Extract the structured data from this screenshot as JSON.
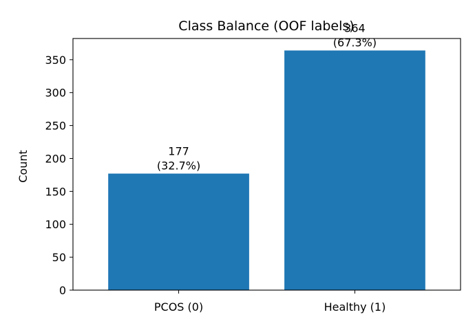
{
  "chart_data": {
    "type": "bar",
    "title": "Class Balance (OOF labels)",
    "xlabel": "",
    "ylabel": "Count",
    "categories": [
      "PCOS (0)",
      "Healthy (1)"
    ],
    "values": [
      177,
      364
    ],
    "data_labels": [
      {
        "count": "177",
        "percent": "(32.7%)"
      },
      {
        "count": "364",
        "percent": "(67.3%)"
      }
    ],
    "ylim": [
      0,
      382.2
    ],
    "yticks": [
      0,
      50,
      100,
      150,
      200,
      250,
      300,
      350
    ],
    "grid": false,
    "legend": "none",
    "bar_color": "#1f77b4"
  }
}
